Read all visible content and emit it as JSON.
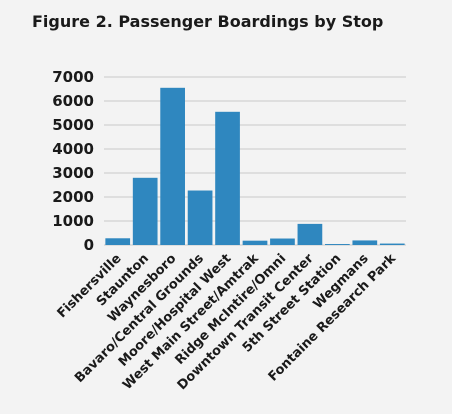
{
  "chart_data": {
    "type": "bar",
    "title": "Figure 2. Passenger Boardings by Stop",
    "xlabel": "",
    "ylabel": "",
    "categories": [
      "Fishersville",
      "Staunton",
      "Waynesboro",
      "Bavaro/Central Grounds",
      "Moore/Hospital West",
      "West Main Street/Amtrak",
      "Ridge McIntire/Omni",
      "Downtown Transit Center",
      "5th Street Station",
      "Wegmans",
      "Fontaine Research Park"
    ],
    "values": [
      280,
      2800,
      6550,
      2270,
      5550,
      180,
      270,
      880,
      40,
      190,
      60
    ],
    "ylim": [
      0,
      7000
    ],
    "yticks": [
      0,
      1000,
      2000,
      3000,
      4000,
      5000,
      6000,
      7000
    ],
    "grid": "horizontal",
    "bar_color": "#2f87bf",
    "grid_color": "#c8c8c8",
    "background": "#f3f3f3"
  }
}
